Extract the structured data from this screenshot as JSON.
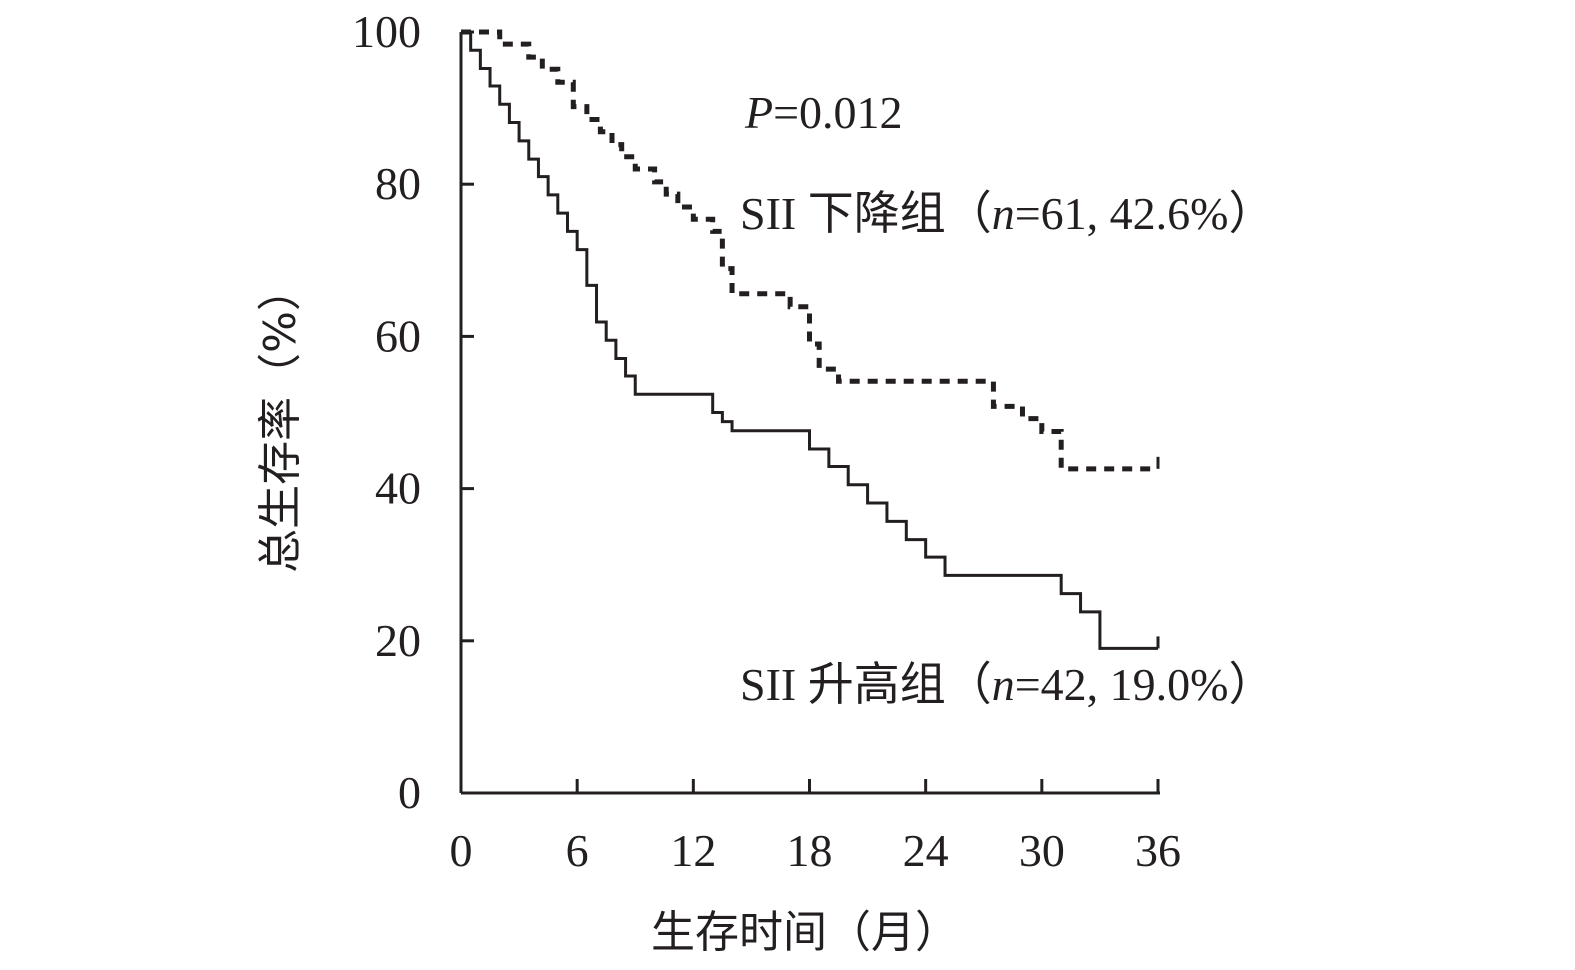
{
  "chart_data": {
    "type": "line",
    "step": true,
    "xlabel": "生存时间（月）",
    "ylabel": "总生存率（%）",
    "xlim": [
      0,
      36
    ],
    "ylim": [
      0,
      100
    ],
    "xticks": [
      0,
      6,
      12,
      18,
      24,
      30,
      36
    ],
    "yticks": [
      0,
      20,
      40,
      60,
      80,
      100
    ],
    "grid": false,
    "annotations": {
      "p_prefix": "P",
      "p_value": "=0.012"
    },
    "series": [
      {
        "name": "SII 下降组（n=61, 42.6%）",
        "label_prefix": "SII 下降组（",
        "label_n": "n",
        "label_rest": "=61, 42.6%）",
        "style": "dashed",
        "x": [
          0,
          1.5,
          2,
          3.5,
          4.2,
          5,
          5.8,
          6.5,
          7.2,
          7.8,
          8.3,
          9,
          10,
          10.6,
          11.2,
          12,
          13,
          13.5,
          14,
          15.3,
          17,
          18,
          18.5,
          19.5,
          21,
          27.5,
          29,
          30,
          31,
          36
        ],
        "y": [
          100,
          100,
          98.4,
          96.7,
          95.1,
          93.4,
          90.2,
          88.5,
          86.9,
          85.2,
          83.6,
          82.0,
          80.3,
          78.7,
          77.0,
          75.4,
          73.8,
          68.9,
          65.6,
          65.6,
          63.9,
          59.0,
          55.7,
          54.1,
          54.1,
          50.8,
          49.2,
          47.5,
          42.6,
          42.6
        ]
      },
      {
        "name": "SII 升高组（n=42, 19.0%）",
        "label_prefix": "SII 升高组（",
        "label_n": "n",
        "label_rest": "=42, 19.0%）",
        "style": "solid",
        "x": [
          0,
          0.5,
          1,
          1.5,
          2,
          2.5,
          3,
          3.5,
          4,
          4.5,
          5,
          5.5,
          6,
          6.5,
          7,
          7.5,
          8,
          8.5,
          9,
          9.5,
          10,
          13,
          13.5,
          14,
          16,
          18,
          19,
          20,
          21,
          22,
          23,
          24,
          25,
          26,
          27,
          31,
          32,
          33,
          36
        ],
        "y": [
          100,
          97.6,
          95.2,
          92.9,
          90.5,
          88.1,
          85.7,
          83.3,
          81.0,
          78.6,
          76.2,
          73.8,
          71.4,
          66.7,
          61.9,
          59.5,
          57.1,
          54.8,
          52.4,
          52.4,
          52.4,
          50.0,
          48.8,
          47.6,
          47.6,
          45.2,
          42.9,
          40.5,
          38.1,
          35.7,
          33.3,
          31.0,
          28.6,
          28.6,
          28.6,
          26.2,
          23.8,
          19.0,
          19.0
        ]
      }
    ]
  }
}
